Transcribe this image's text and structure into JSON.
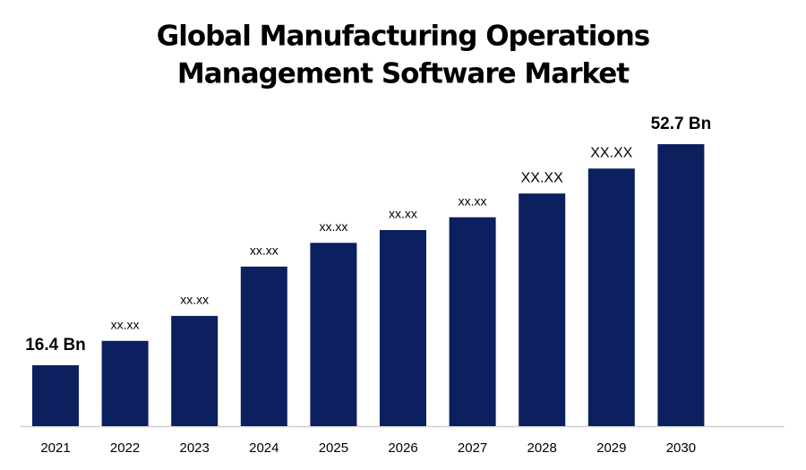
{
  "chart_data": {
    "type": "bar",
    "title": [
      "Global Manufacturing Operations",
      "Management Software Market"
    ],
    "categories": [
      "2021",
      "2022",
      "2023",
      "2024",
      "2025",
      "2026",
      "2027",
      "2028",
      "2029",
      "2030"
    ],
    "values": [
      16.4,
      20.4,
      24.5,
      32.6,
      36.5,
      38.6,
      40.7,
      44.6,
      48.7,
      52.7
    ],
    "value_labels": [
      "16.4 Bn",
      "xx.xx",
      "xx.xx",
      "xx.xx",
      "xx.xx",
      "xx.xx",
      "xx.xx",
      "XX.XX",
      "XX.XX",
      "52.7 Bn"
    ],
    "color": "#0c1f5e",
    "ylim": [
      6.4,
      60.5
    ]
  }
}
